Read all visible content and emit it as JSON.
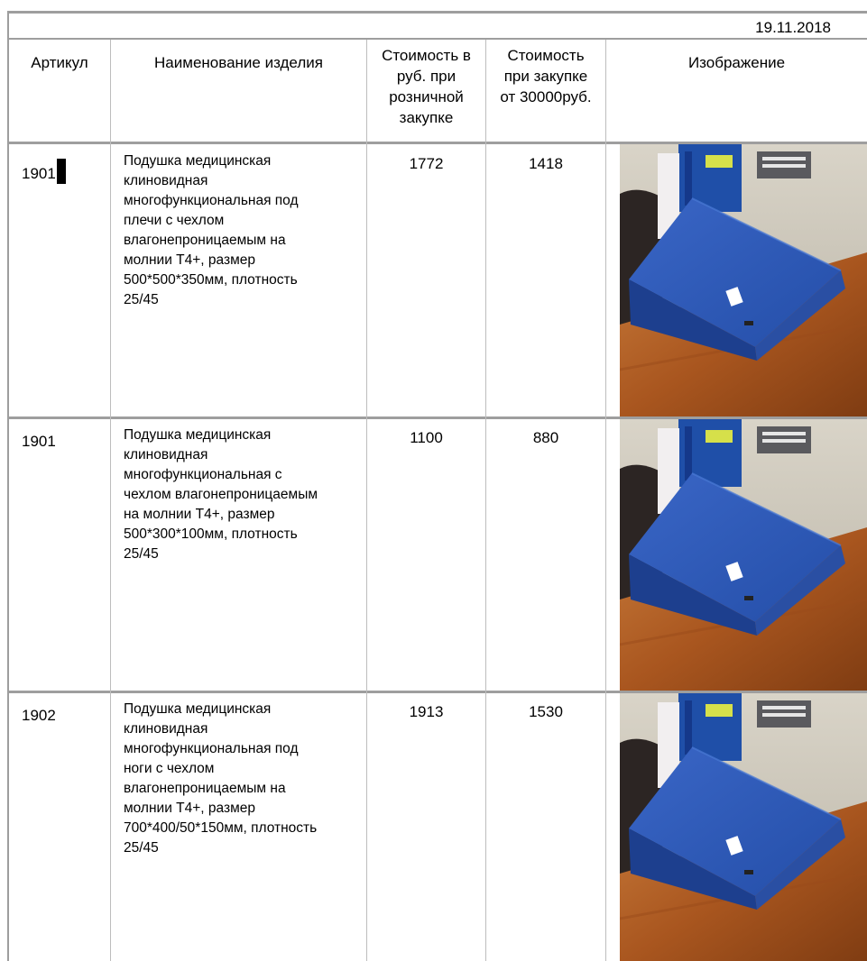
{
  "date": "19.11.2018",
  "headers": {
    "article": "Артикул",
    "name": "Наименование изделия",
    "retail": [
      "Стоимость в",
      "руб. при",
      "розничной",
      "закупке"
    ],
    "wholesale": [
      "Стоимость",
      "при закупке",
      "от 30000руб."
    ],
    "image": "Изображение"
  },
  "rows": [
    {
      "article": "1901",
      "name": [
        "Подушка медицинская",
        "клиновидная",
        "многофункциональная  под",
        "плечи с чехлом",
        "влагонепроницаемым на",
        "молнии Т4+, размер",
        "500*500*350мм, плотность",
        "25/45"
      ],
      "retail": "1772",
      "wholesale": "1418",
      "image_icon": "wedge-pillow-photo"
    },
    {
      "article": "1901",
      "name": [
        "Подушка медицинская",
        "клиновидная",
        "многофункциональная  с",
        "чехлом влагонепроницаемым",
        "на молнии Т4+, размер",
        "500*300*100мм, плотность",
        "25/45"
      ],
      "retail": "1100",
      "wholesale": "880",
      "image_icon": "wedge-pillow-photo"
    },
    {
      "article": "1902",
      "name": [
        "Подушка медицинская",
        "клиновидная",
        "многофункциональная  под",
        "ноги с чехлом",
        "влагонепроницаемым на",
        "молнии Т4+, размер",
        "700*400/50*150мм, плотность",
        "25/45"
      ],
      "retail": "1913",
      "wholesale": "1530",
      "image_icon": "wedge-pillow-photo"
    }
  ],
  "colors": {
    "pillow_blue": "#2d57b8",
    "table_wood": "#b5652a",
    "grid_line": "#9e9e9e"
  }
}
